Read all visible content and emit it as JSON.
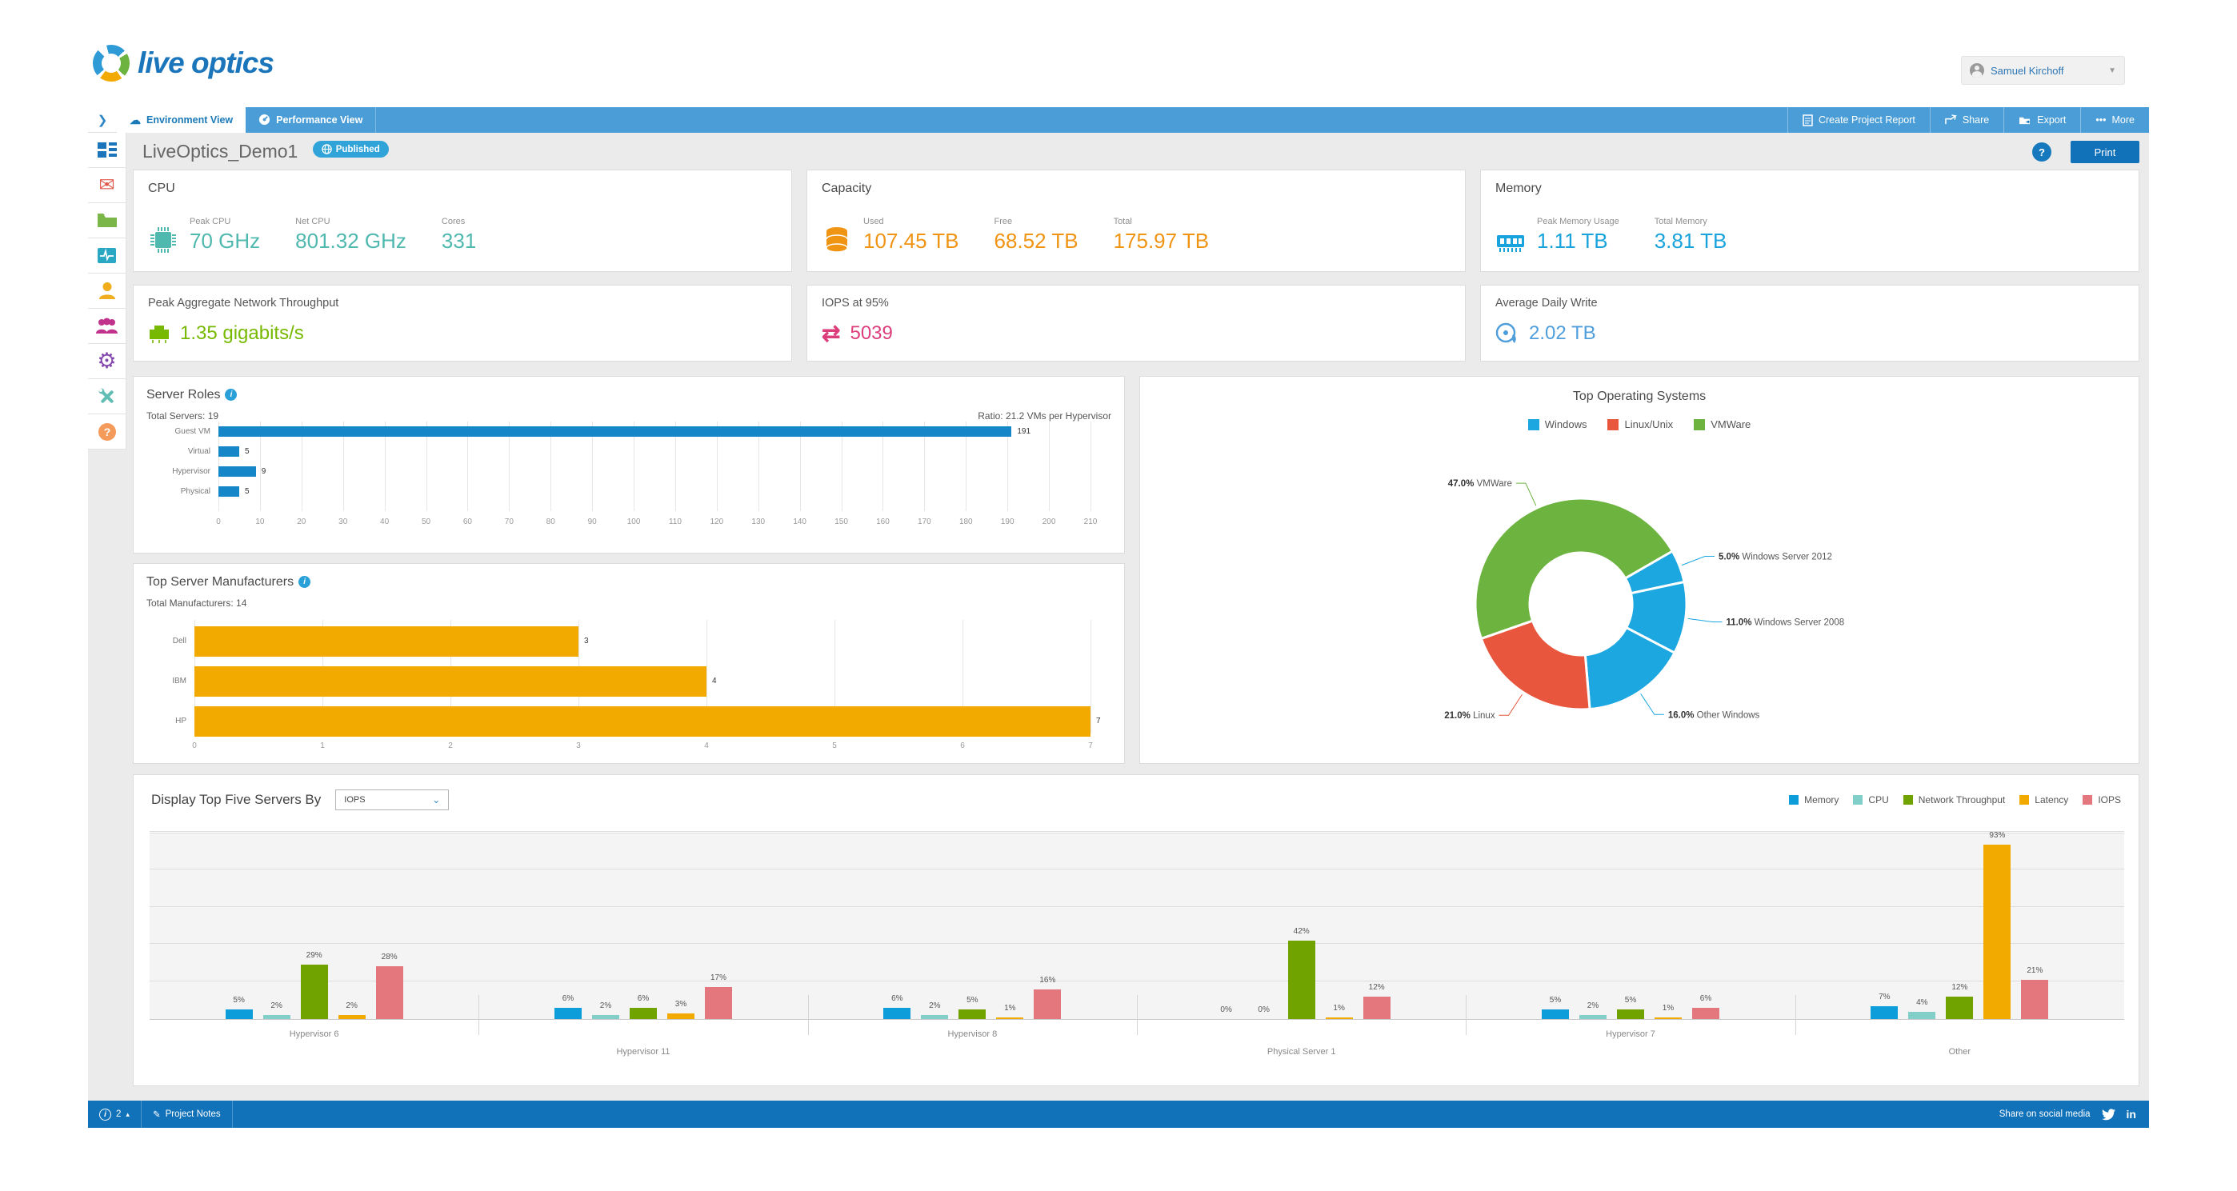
{
  "header": {
    "logo_text": "live optics",
    "user_name": "Samuel Kirchoff"
  },
  "tabs": {
    "environment": "Environment View",
    "performance": "Performance View"
  },
  "toolbar": {
    "create_report": "Create Project Report",
    "share": "Share",
    "export": "Export",
    "more": "More"
  },
  "title_bar": {
    "project_name": "LiveOptics_Demo1",
    "published_label": "Published",
    "help_label": "?",
    "print_label": "Print"
  },
  "sidebar": {
    "items": [
      "dashboard",
      "mail",
      "folder",
      "monitor",
      "user",
      "user-group",
      "settings",
      "tools",
      "help"
    ]
  },
  "kpis": {
    "cpu": {
      "title": "CPU",
      "color": "#4fb8af",
      "metrics": [
        {
          "label": "Peak CPU",
          "value": "70 GHz"
        },
        {
          "label": "Net CPU",
          "value": "801.32 GHz"
        },
        {
          "label": "Cores",
          "value": "331"
        }
      ]
    },
    "capacity": {
      "title": "Capacity",
      "color": "#ef9413",
      "metrics": [
        {
          "label": "Used",
          "value": "107.45 TB"
        },
        {
          "label": "Free",
          "value": "68.52 TB"
        },
        {
          "label": "Total",
          "value": "175.97 TB"
        }
      ]
    },
    "memory": {
      "title": "Memory",
      "color": "#19a3dd",
      "metrics": [
        {
          "label": "Peak Memory Usage",
          "value": "1.11 TB"
        },
        {
          "label": "Total Memory",
          "value": "3.81 TB"
        }
      ]
    },
    "network": {
      "title": "Peak Aggregate Network Throughput",
      "value": "1.35 gigabits/s",
      "color": "#76b900"
    },
    "iops": {
      "title": "IOPS at 95%",
      "value": "5039",
      "color": "#dc3d7b"
    },
    "daily_write": {
      "title": "Average Daily Write",
      "value": "2.02 TB",
      "color": "#4f9edc"
    }
  },
  "chart_data": [
    {
      "id": "server_roles",
      "type": "bar",
      "orientation": "horizontal",
      "title": "Server Roles",
      "subtitle_left": "Total Servers: 19",
      "subtitle_right": "Ratio: 21.2 VMs per Hypervisor",
      "categories": [
        "Guest VM",
        "Virtual",
        "Hypervisor",
        "Physical"
      ],
      "values": [
        191,
        5,
        9,
        5
      ],
      "xlim": [
        0,
        210
      ],
      "tick_step": 10,
      "bar_color": "#1586c8",
      "grid": true,
      "legend_position": "none"
    },
    {
      "id": "manufacturers",
      "type": "bar",
      "orientation": "horizontal",
      "title": "Top Server Manufacturers",
      "subtitle_left": "Total Manufacturers: 14",
      "categories": [
        "Dell",
        "IBM",
        "HP"
      ],
      "values": [
        3,
        4,
        7
      ],
      "xlim": [
        0,
        7
      ],
      "tick_step": 1,
      "bar_color": "#f2a900",
      "grid": true,
      "legend_position": "none"
    },
    {
      "id": "top_os",
      "type": "pie",
      "subtype": "donut",
      "title": "Top Operating Systems",
      "legend_position": "top",
      "legend": [
        {
          "name": "Windows",
          "color": "#1da7e0"
        },
        {
          "name": "Linux/Unix",
          "color": "#e8573d"
        },
        {
          "name": "VMWare",
          "color": "#6db33f"
        }
      ],
      "start_angle_deg": 60,
      "slices": [
        {
          "label": "Windows Server 2012",
          "pct": 5.0,
          "color": "#1da7e0"
        },
        {
          "label": "Windows Server 2008",
          "pct": 11.0,
          "color": "#1da7e0"
        },
        {
          "label": "Other Windows",
          "pct": 16.0,
          "color": "#1da7e0"
        },
        {
          "label": "Linux",
          "pct": 21.0,
          "color": "#e8573d"
        },
        {
          "label": "VMWare",
          "pct": 47.0,
          "color": "#6db33f"
        }
      ]
    },
    {
      "id": "top_five_servers",
      "type": "bar",
      "orientation": "vertical",
      "grouped": true,
      "control_label": "Display Top Five Servers By",
      "selected_metric": "IOPS",
      "categories": [
        "Hypervisor 6",
        "Hypervisor 11",
        "Hypervisor 8",
        "Physical Server 1",
        "Hypervisor 7",
        "Other"
      ],
      "series": [
        {
          "name": "Memory",
          "color": "#0d9ddb",
          "values": [
            5,
            6,
            6,
            0,
            5,
            7
          ]
        },
        {
          "name": "CPU",
          "color": "#82cec8",
          "values": [
            2,
            2,
            2,
            0,
            2,
            4
          ]
        },
        {
          "name": "Network Throughput",
          "color": "#71a300",
          "values": [
            29,
            6,
            5,
            42,
            5,
            12
          ]
        },
        {
          "name": "Latency",
          "color": "#f2a900",
          "values": [
            2,
            3,
            1,
            1,
            1,
            93
          ]
        },
        {
          "name": "IOPS",
          "color": "#e4777e",
          "values": [
            28,
            17,
            16,
            12,
            6,
            21
          ]
        }
      ],
      "value_suffix": "%",
      "ylim": [
        0,
        100
      ],
      "grid": true,
      "legend_position": "top-right"
    }
  ],
  "footer": {
    "alert_count": "2",
    "notes_label": "Project Notes",
    "share_label": "Share on social media"
  }
}
